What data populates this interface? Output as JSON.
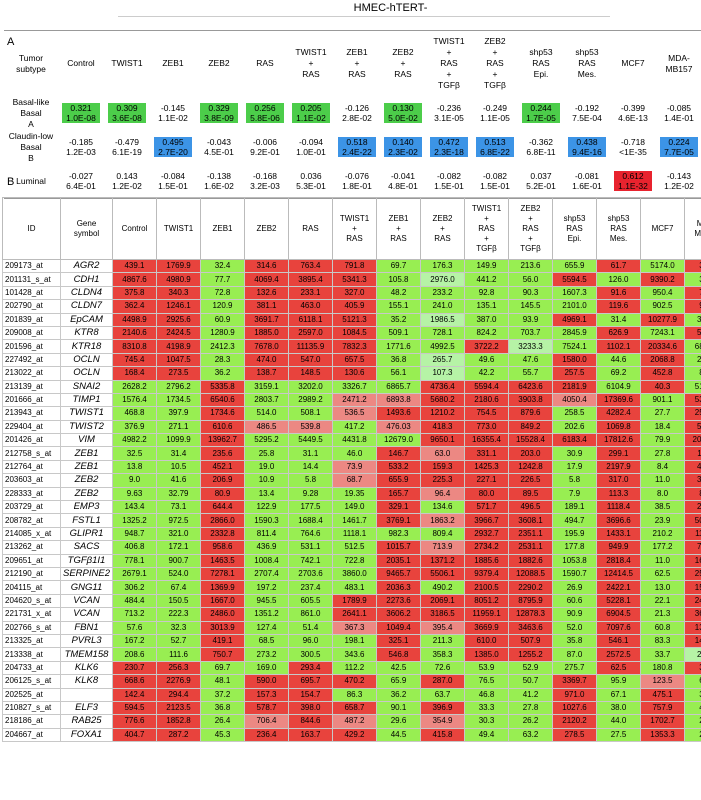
{
  "header_title": "HMEC-hTERT-",
  "panel_a_label": "A",
  "panel_b_label": "B",
  "colors": {
    "red": "#e8433d",
    "green": "#98ee52",
    "pink": "#ec8883",
    "light_green": "#b6f3a6",
    "blue": "#3c94e6",
    "deep_green": "#4ccd4a",
    "deep_red": "#e8232e"
  },
  "panel_a": {
    "corner": "Tumor subtype",
    "columns": [
      "Control",
      "TWIST1",
      "ZEB1",
      "ZEB2",
      "RAS",
      "TWIST1 + RAS",
      "ZEB1 + RAS",
      "ZEB2 + RAS",
      "TWIST1 + RAS + TGFβ",
      "ZEB2 + RAS + TGFβ",
      "shp53 RAS Epi.",
      "shp53 RAS Mes.",
      "MCF7",
      "MDA-MB157"
    ],
    "rows": [
      {
        "label": "Basal-like Basal A",
        "cells": [
          {
            "r": "0.321",
            "p": "1.0E-08",
            "c": "G"
          },
          {
            "r": "0.309",
            "p": "3.6E-08",
            "c": "G"
          },
          {
            "r": "-0.145",
            "p": "1.1E-02",
            "c": ""
          },
          {
            "r": "0.329",
            "p": "3.8E-09",
            "c": "G"
          },
          {
            "r": "0.256",
            "p": "5.8E-06",
            "c": "G"
          },
          {
            "r": "0.205",
            "p": "1.1E-02",
            "c": "G"
          },
          {
            "r": "-0.126",
            "p": "2.8E-02",
            "c": ""
          },
          {
            "r": "0.130",
            "p": "5.0E-02",
            "c": "G"
          },
          {
            "r": "-0.236",
            "p": "3.1E-05",
            "c": ""
          },
          {
            "r": "-0.249",
            "p": "1.1E-05",
            "c": ""
          },
          {
            "r": "0.244",
            "p": "1.7E-05",
            "c": "G"
          },
          {
            "r": "-0.192",
            "p": "7.5E-04",
            "c": ""
          },
          {
            "r": "-0.399",
            "p": "4.6E-13",
            "c": ""
          },
          {
            "r": "-0.085",
            "p": "1.4E-01",
            "c": ""
          }
        ]
      },
      {
        "label": "Claudin-low Basal B",
        "cells": [
          {
            "r": "-0.185",
            "p": "1.2E-03",
            "c": ""
          },
          {
            "r": "-0.479",
            "p": "6.1E-19",
            "c": ""
          },
          {
            "r": "0.495",
            "p": "2.7E-20",
            "c": "B"
          },
          {
            "r": "-0.043",
            "p": "4.5E-01",
            "c": ""
          },
          {
            "r": "-0.006",
            "p": "9.2E-01",
            "c": ""
          },
          {
            "r": "-0.094",
            "p": "1.0E-01",
            "c": ""
          },
          {
            "r": "0.518",
            "p": "2.4E-22",
            "c": "B"
          },
          {
            "r": "0.140",
            "p": "2.3E-02",
            "c": "B"
          },
          {
            "r": "0.472",
            "p": "2.3E-18",
            "c": "B"
          },
          {
            "r": "0.513",
            "p": "6.8E-22",
            "c": "B"
          },
          {
            "r": "-0.362",
            "p": "6.8E-11",
            "c": ""
          },
          {
            "r": "0.438",
            "p": "9.4E-16",
            "c": "B"
          },
          {
            "r": "-0.718",
            "p": "<1E-35",
            "c": ""
          },
          {
            "r": "0.224",
            "p": "7.7E-05",
            "c": "B"
          }
        ]
      },
      {
        "label": "Luminal",
        "cells": [
          {
            "r": "-0.027",
            "p": "6.4E-01",
            "c": ""
          },
          {
            "r": "0.143",
            "p": "1.2E-02",
            "c": ""
          },
          {
            "r": "-0.084",
            "p": "1.5E-01",
            "c": ""
          },
          {
            "r": "-0.138",
            "p": "1.6E-02",
            "c": ""
          },
          {
            "r": "-0.168",
            "p": "3.2E-03",
            "c": ""
          },
          {
            "r": "0.036",
            "p": "5.3E-01",
            "c": ""
          },
          {
            "r": "-0.076",
            "p": "1.8E-01",
            "c": ""
          },
          {
            "r": "-0.041",
            "p": "4.8E-01",
            "c": ""
          },
          {
            "r": "-0.082",
            "p": "1.5E-01",
            "c": ""
          },
          {
            "r": "-0.082",
            "p": "1.5E-01",
            "c": ""
          },
          {
            "r": "0.037",
            "p": "5.2E-01",
            "c": ""
          },
          {
            "r": "-0.081",
            "p": "1.6E-01",
            "c": ""
          },
          {
            "r": "0.612",
            "p": "1.1E-32",
            "c": "R"
          },
          {
            "r": "-0.143",
            "p": "1.2E-02",
            "c": ""
          }
        ]
      }
    ]
  },
  "panel_b": {
    "id_header": "ID",
    "gene_header": "Gene symbol",
    "columns": [
      "Control",
      "TWIST1",
      "ZEB1",
      "ZEB2",
      "RAS",
      "TWIST1 + RAS",
      "ZEB1 + RAS",
      "ZEB2 + RAS",
      "TWIST1 + RAS + TGFβ",
      "ZEB2 + RAS + TGFβ",
      "shp53 RAS Epi.",
      "shp53 RAS Mes.",
      "MCF7",
      "MDA-MB157"
    ],
    "rows": [
      {
        "id": "209173_at",
        "gene": "AGR2",
        "v": [
          "439.1",
          "1769.9",
          "32.4",
          "314.6",
          "763.4",
          "791.8",
          "69.7",
          "176.3",
          "149.9",
          "213.6",
          "655.9",
          "61.7",
          "5174.0",
          "31.5"
        ],
        "c": "rrgrrrgggggrgrg"
      },
      {
        "id": "201131_s_at",
        "gene": "CDH1",
        "v": [
          "4867.6",
          "4980.9",
          "77.7",
          "4069.4",
          "3895.4",
          "5341.3",
          "105.8",
          "2976.0",
          "441.2",
          "56.0",
          "5594.5",
          "126.0",
          "9390.2",
          "38.4"
        ],
        "c": "rrgrrrglggrgrg"
      },
      {
        "id": "101428_at",
        "gene": "CLDN4",
        "v": [
          "375.8",
          "340.3",
          "72.8",
          "132.6",
          "233.1",
          "327.0",
          "48.2",
          "233.2",
          "92.8",
          "90.3",
          "1607.3",
          "91.6",
          "950.4",
          "78.8"
        ],
        "c": "rrgrrrgggggrgrg"
      },
      {
        "id": "202790_at",
        "gene": "CLDN7",
        "v": [
          "362.4",
          "1246.1",
          "120.9",
          "381.1",
          "463.0",
          "405.9",
          "155.1",
          "241.0",
          "135.1",
          "145.5",
          "2101.0",
          "119.6",
          "902.5",
          "96.7"
        ],
        "c": "rrgrrrgggggrgrg"
      },
      {
        "id": "201839_at",
        "gene": "EpCAM",
        "v": [
          "4498.9",
          "2925.6",
          "60.9",
          "3691.7",
          "6118.1",
          "5121.3",
          "35.2",
          "1986.5",
          "387.0",
          "93.9",
          "4969.1",
          "31.4",
          "10277.9",
          "309.9"
        ],
        "c": "rrgrrrglggrgrg"
      },
      {
        "id": "209008_at",
        "gene": "KTR8",
        "v": [
          "2140.6",
          "2424.5",
          "1280.9",
          "1885.0",
          "2597.0",
          "1084.5",
          "509.1",
          "728.1",
          "824.2",
          "703.7",
          "2845.9",
          "626.9",
          "7243.1",
          "592.7"
        ],
        "c": "rrgrrrgggggrgrg"
      },
      {
        "id": "201596_at",
        "gene": "KTR18",
        "v": [
          "8310.8",
          "4198.9",
          "2412.3",
          "7678.0",
          "11135.9",
          "7832.3",
          "1771.6",
          "4992.5",
          "3722.2",
          "3233.3",
          "7524.1",
          "1102.1",
          "20334.6",
          "6818.5"
        ],
        "c": "rrgrrrggrlgrrgrr"
      },
      {
        "id": "227492_at",
        "gene": "OCLN",
        "v": [
          "745.4",
          "1047.5",
          "28.3",
          "474.0",
          "547.0",
          "657.5",
          "36.8",
          "265.7",
          "49.6",
          "47.6",
          "1580.0",
          "44.6",
          "2068.8",
          "254.2"
        ],
        "c": "rrgrrrglggrgrg"
      },
      {
        "id": "213022_at",
        "gene": "OCLN",
        "v": [
          "168.4",
          "273.5",
          "36.2",
          "138.7",
          "148.5",
          "130.6",
          "56.1",
          "107.3",
          "42.2",
          "55.7",
          "257.5",
          "69.2",
          "452.8",
          "89.3"
        ],
        "c": "rrgrrrglggrgrg"
      },
      {
        "id": "213139_at",
        "gene": "SNAI2",
        "v": [
          "2628.2",
          "2796.2",
          "5335.8",
          "3159.1",
          "3202.0",
          "3326.7",
          "6865.7",
          "4736.4",
          "5594.4",
          "6423.6",
          "2181.9",
          "6104.9",
          "40.3",
          "5141.3"
        ],
        "c": "ggrggggrrrrgrgr"
      },
      {
        "id": "201666_at",
        "gene": "TIMP1",
        "v": [
          "1576.4",
          "1734.5",
          "6540.6",
          "2803.7",
          "2989.2",
          "2471.2",
          "6893.8",
          "5680.2",
          "2180.6",
          "3903.8",
          "4050.4",
          "17369.6",
          "901.1",
          "5353.5"
        ],
        "c": "ggrggpprrrprgrgr"
      },
      {
        "id": "213943_at",
        "gene": "TWIST1",
        "v": [
          "468.8",
          "397.9",
          "1734.6",
          "514.0",
          "508.1",
          "536.5",
          "1493.6",
          "1210.2",
          "754.5",
          "879.6",
          "258.5",
          "4282.4",
          "27.7",
          "2575.9"
        ],
        "c": "ggrggprrrrgrgr"
      },
      {
        "id": "229404_at",
        "gene": "TWIST2",
        "v": [
          "376.9",
          "271.1",
          "610.6",
          "486.5",
          "539.8",
          "417.2",
          "476.03",
          "418.3",
          "773.0",
          "849.2",
          "202.6",
          "1069.8",
          "18.4",
          "546.8"
        ],
        "c": "ggrppgprrrgrgr"
      },
      {
        "id": "201426_at",
        "gene": "VIM",
        "v": [
          "4982.2",
          "1099.9",
          "13962.7",
          "5295.2",
          "5449.5",
          "4431.8",
          "12679.0",
          "9650.1",
          "16355.4",
          "15528.4",
          "6183.4",
          "17812.6",
          "79.9",
          "20693.0"
        ],
        "c": "ggrggggrrrrrgrgr"
      },
      {
        "id": "212758_s_at",
        "gene": "ZEB1",
        "v": [
          "32.5",
          "31.4",
          "235.6",
          "25.8",
          "31.1",
          "46.0",
          "146.7",
          "63.0",
          "331.1",
          "203.0",
          "30.9",
          "299.1",
          "27.8",
          "116.3"
        ],
        "c": "ggrgggrprrgrgr"
      },
      {
        "id": "212764_at",
        "gene": "ZEB1",
        "v": [
          "13.8",
          "10.5",
          "452.1",
          "19.0",
          "14.4",
          "73.9",
          "533.2",
          "159.3",
          "1425.3",
          "1242.8",
          "17.9",
          "2197.9",
          "8.4",
          "485.0"
        ],
        "c": "ggrggprrrrgrgr"
      },
      {
        "id": "203603_at",
        "gene": "ZEB2",
        "v": [
          "9.0",
          "41.6",
          "206.9",
          "10.9",
          "5.8",
          "68.7",
          "655.9",
          "225.3",
          "227.1",
          "226.5",
          "5.8",
          "317.0",
          "11.0",
          "358.2"
        ],
        "c": "ggrggprrrrgrgr"
      },
      {
        "id": "228333_at",
        "gene": "ZEB2",
        "v": [
          "9.63",
          "32.79",
          "80.9",
          "13.4",
          "9.28",
          "19.35",
          "165.7",
          "96.4",
          "80.0",
          "89.5",
          "7.9",
          "113.3",
          "8.0",
          "89.6"
        ],
        "c": "ggrgggrprrgrgr"
      },
      {
        "id": "203729_at",
        "gene": "EMP3",
        "v": [
          "143.4",
          "73.1",
          "644.4",
          "122.9",
          "177.5",
          "149.0",
          "329.1",
          "134.6",
          "571.7",
          "496.5",
          "189.1",
          "1118.4",
          "38.5",
          "255.9"
        ],
        "c": "ggrgggrgrrgrgr"
      },
      {
        "id": "208782_at",
        "gene": "FSTL1",
        "v": [
          "1325.2",
          "972.5",
          "2866.0",
          "1590.3",
          "1688.4",
          "1461.7",
          "3769.1",
          "1863.2",
          "3966.7",
          "3608.1",
          "494.7",
          "3696.6",
          "23.9",
          "5090.0"
        ],
        "c": "ggrgggrprrgrgr"
      },
      {
        "id": "214085_x_at",
        "gene": "GLIPR1",
        "v": [
          "948.7",
          "321.0",
          "2332.8",
          "811.4",
          "764.6",
          "1118.1",
          "982.3",
          "809.4",
          "2932.7",
          "2351.1",
          "195.9",
          "1433.1",
          "210.2",
          "1146.5"
        ],
        "c": "ggrgggggrrgrgr"
      },
      {
        "id": "213262_at",
        "gene": "SACS",
        "v": [
          "406.8",
          "172.1",
          "958.6",
          "436.9",
          "531.1",
          "512.5",
          "1015.7",
          "713.9",
          "2734.2",
          "2531.1",
          "177.8",
          "949.9",
          "177.2",
          "731.2"
        ],
        "c": "ggrgggrprrgrgr"
      },
      {
        "id": "209651_at",
        "gene": "TGFβ1I1",
        "v": [
          "778.1",
          "900.7",
          "1463.5",
          "1008.4",
          "742.1",
          "722.8",
          "2035.1",
          "1371.2",
          "1885.6",
          "1882.6",
          "1053.8",
          "2818.4",
          "11.0",
          "1642.8"
        ],
        "c": "ggrgggrrrrgrgr"
      },
      {
        "id": "212190_at",
        "gene": "SERPINE2",
        "v": [
          "2679.1",
          "524.0",
          "7278.1",
          "2707.4",
          "2703.6",
          "3860.0",
          "9465.7",
          "5506.1",
          "9379.4",
          "12088.5",
          "1590.7",
          "12414.5",
          "62.5",
          "2581.7"
        ],
        "c": "ggrgggrrrrgrgr"
      },
      {
        "id": "204115_at",
        "gene": "GNG11",
        "v": [
          "306.2",
          "67.4",
          "1369.9",
          "197.2",
          "237.4",
          "483.1",
          "2036.3",
          "490.2",
          "2100.5",
          "2290.2",
          "26.9",
          "2422.1",
          "13.0",
          "1515.8"
        ],
        "c": "ggrgggrgrrgrgr"
      },
      {
        "id": "204620_s_at",
        "gene": "VCAN",
        "v": [
          "484.4",
          "150.5",
          "1667.0",
          "945.5",
          "605.5",
          "1789.9",
          "2273.6",
          "2069.1",
          "8051.2",
          "8795.9",
          "60.6",
          "5228.1",
          "22.1",
          "2488.6"
        ],
        "c": "ggrggrrrrrgrgr"
      },
      {
        "id": "221731_x_at",
        "gene": "VCAN",
        "v": [
          "713.2",
          "222.3",
          "2486.0",
          "1351.2",
          "861.0",
          "2641.1",
          "3606.2",
          "3186.5",
          "11959.1",
          "12878.3",
          "90.9",
          "6904.5",
          "21.3",
          "3694.7"
        ],
        "c": "ggrggrrrrrgrgr"
      },
      {
        "id": "202766_s_at",
        "gene": "FBN1",
        "v": [
          "57.6",
          "32.3",
          "3013.9",
          "127.4",
          "51.4",
          "367.3",
          "1049.4",
          "395.4",
          "3669.9",
          "3463.6",
          "52.0",
          "7097.6",
          "60.8",
          "1387.5"
        ],
        "c": "ggrggprprrgrgr"
      },
      {
        "id": "213325_at",
        "gene": "PVRL3",
        "v": [
          "167.2",
          "52.7",
          "419.1",
          "68.5",
          "96.0",
          "198.1",
          "325.1",
          "211.3",
          "610.0",
          "507.9",
          "35.8",
          "546.1",
          "83.3",
          "1497.2"
        ],
        "c": "ggrgggrgrrgrgr"
      },
      {
        "id": "213338_at",
        "gene": "TMEM158",
        "v": [
          "208.6",
          "111.6",
          "750.7",
          "273.2",
          "300.5",
          "343.6",
          "546.8",
          "358.3",
          "1385.0",
          "1255.2",
          "87.0",
          "2572.5",
          "33.7",
          "240.3"
        ],
        "c": "ggrgggrgrrgrgl"
      },
      {
        "id": "204733_at",
        "gene": "KLK6",
        "v": [
          "230.7",
          "256.3",
          "69.7",
          "169.0",
          "293.4",
          "112.2",
          "42.5",
          "72.6",
          "53.9",
          "52.9",
          "275.7",
          "62.5",
          "180.8",
          "34.4"
        ],
        "c": "rrggrggggggrgrg"
      },
      {
        "id": "206125_s_at",
        "gene": "KLK8",
        "v": [
          "668.6",
          "2276.9",
          "48.1",
          "590.0",
          "695.7",
          "470.2",
          "65.9",
          "287.0",
          "76.5",
          "50.7",
          "3369.7",
          "95.9",
          "123.5",
          "60.0"
        ],
        "c": "rrgrrrgrggrgpg"
      },
      {
        "id": "202525_at",
        "gene": "",
        "v": [
          "142.4",
          "294.4",
          "37.2",
          "157.3",
          "154.7",
          "86.3",
          "36.2",
          "63.7",
          "46.8",
          "41.2",
          "971.0",
          "67.1",
          "475.1",
          "34.3"
        ],
        "c": "rrgrrgggggrgrg"
      },
      {
        "id": "210827_s_at",
        "gene": "ELF3",
        "v": [
          "594.5",
          "2123.5",
          "36.8",
          "578.7",
          "398.0",
          "658.7",
          "90.1",
          "396.9",
          "33.3",
          "27.8",
          "1027.6",
          "38.0",
          "757.9",
          "47.0"
        ],
        "c": "rrgrrrgrggrgrg"
      },
      {
        "id": "218186_at",
        "gene": "RAB25",
        "v": [
          "776.6",
          "1852.8",
          "26.4",
          "706.4",
          "844.6",
          "487.2",
          "29.6",
          "354.9",
          "30.3",
          "26.2",
          "2120.2",
          "44.0",
          "1702.7",
          "23.0"
        ],
        "c": "rrgprpgpggrgrg"
      },
      {
        "id": "204667_at",
        "gene": "FOXA1",
        "v": [
          "404.7",
          "287.2",
          "45.3",
          "236.4",
          "163.7",
          "429.2",
          "44.5",
          "415.8",
          "49.4",
          "63.2",
          "278.5",
          "27.5",
          "1353.3",
          "22.5"
        ],
        "c": "rrgrrrgrggrgrg"
      }
    ]
  }
}
